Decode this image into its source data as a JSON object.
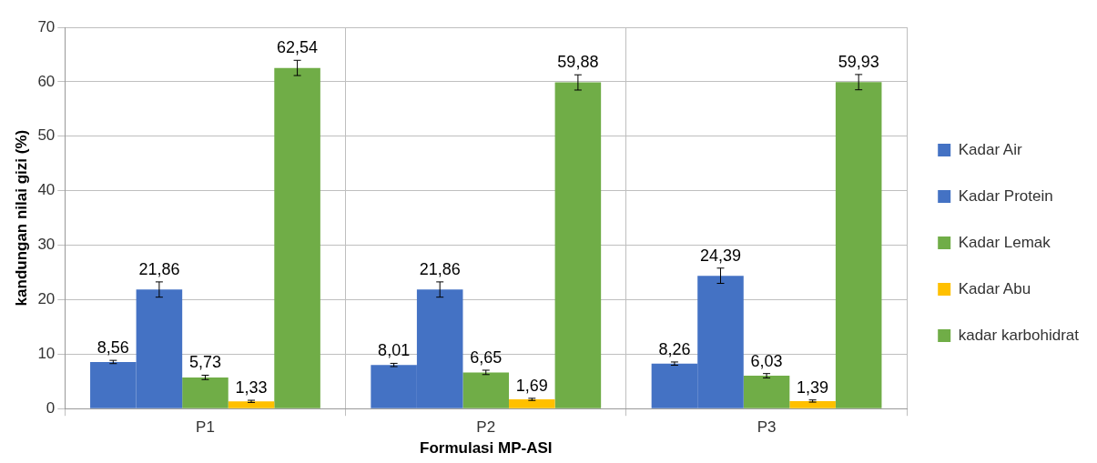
{
  "chart_data": {
    "type": "bar",
    "xlabel": "Formulasi MP-ASI",
    "ylabel": "kandungan nilai gizi (%)",
    "categories": [
      "P1",
      "P2",
      "P3"
    ],
    "series": [
      {
        "name": "Kadar Air",
        "color": "#4472c4",
        "values": [
          8.56,
          8.01,
          8.26
        ],
        "errors": [
          0.3,
          0.3,
          0.3
        ],
        "value_labels": [
          "8,56",
          "8,01",
          "8,26"
        ]
      },
      {
        "name": "Kadar Protein",
        "color": "#4472c4",
        "values": [
          21.86,
          21.86,
          24.39
        ],
        "errors": [
          1.4,
          1.4,
          1.4
        ],
        "value_labels": [
          "21,86",
          "21,86",
          "24,39"
        ]
      },
      {
        "name": "Kadar Lemak",
        "color": "#70ad47",
        "values": [
          5.73,
          6.65,
          6.03
        ],
        "errors": [
          0.4,
          0.4,
          0.4
        ],
        "value_labels": [
          "5,73",
          "6,65",
          "6,03"
        ]
      },
      {
        "name": "Kadar Abu",
        "color": "#ffc000",
        "values": [
          1.33,
          1.69,
          1.39
        ],
        "errors": [
          0.2,
          0.2,
          0.2
        ],
        "value_labels": [
          "1,33",
          "1,69",
          "1,39"
        ]
      },
      {
        "name": "kadar karbohidrat",
        "color": "#70ad47",
        "values": [
          62.54,
          59.88,
          59.93
        ],
        "errors": [
          1.4,
          1.4,
          1.4
        ],
        "value_labels": [
          "62,54",
          "59,88",
          "59,93"
        ]
      }
    ],
    "ylim": [
      0,
      70
    ],
    "yticks": [
      0,
      10,
      20,
      30,
      40,
      50,
      60,
      70
    ],
    "grid": "y",
    "legend": "right"
  }
}
